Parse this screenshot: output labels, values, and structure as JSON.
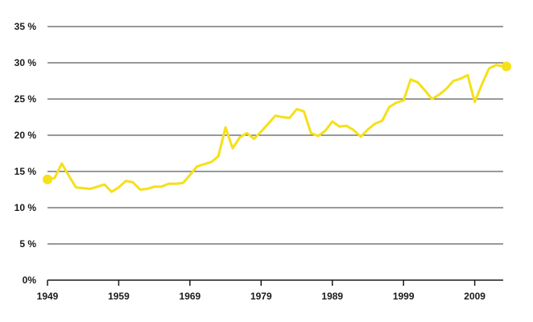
{
  "chart_data": {
    "type": "line",
    "title": "",
    "xlabel": "",
    "ylabel": "",
    "xlim": [
      1949,
      2013
    ],
    "ylim": [
      0,
      35
    ],
    "grid": true,
    "legend": "none",
    "x_ticks": [
      1949,
      1959,
      1969,
      1979,
      1989,
      1999,
      2009
    ],
    "x_tick_labels": [
      "1949",
      "1959",
      "1969",
      "1979",
      "1989",
      "1999",
      "2009"
    ],
    "y_ticks": [
      0,
      5,
      10,
      15,
      20,
      25,
      30,
      35
    ],
    "y_tick_labels": [
      "0%",
      "5 %",
      "10 %",
      "15 %",
      "20 %",
      "25 %",
      "30 %",
      "35 %"
    ],
    "colors": {
      "line": "#f5e01a",
      "grid": "#333333",
      "axis": "#1a1a1a"
    },
    "series": [
      {
        "x": [
          1949,
          1950,
          1951,
          1952,
          1953,
          1954,
          1955,
          1956,
          1957,
          1958,
          1959,
          1960,
          1961,
          1962,
          1963,
          1964,
          1965,
          1966,
          1967,
          1968,
          1969,
          1970,
          1971,
          1972,
          1973,
          1974,
          1975,
          1976,
          1977,
          1978,
          1979,
          1980,
          1981,
          1982,
          1983,
          1984,
          1985,
          1986,
          1987,
          1988,
          1989,
          1990,
          1991,
          1992,
          1993,
          1994,
          1995,
          1996,
          1997,
          1998,
          1999,
          2000,
          2001,
          2002,
          2003,
          2004,
          2005,
          2006,
          2007,
          2008,
          2009,
          2010,
          2011,
          2012,
          2013
        ],
        "values": [
          13.9,
          14.1,
          16.1,
          14.4,
          12.8,
          12.7,
          12.6,
          12.9,
          13.2,
          12.2,
          12.8,
          13.7,
          13.5,
          12.5,
          12.6,
          12.9,
          12.9,
          13.3,
          13.3,
          13.4,
          14.5,
          15.7,
          16.0,
          16.3,
          17.1,
          21.1,
          18.2,
          19.7,
          20.3,
          19.5,
          20.5,
          21.6,
          22.7,
          22.5,
          22.4,
          23.6,
          23.3,
          20.3,
          19.9,
          20.6,
          21.9,
          21.2,
          21.3,
          20.7,
          19.8,
          20.8,
          21.6,
          22.0,
          23.9,
          24.5,
          24.8,
          27.7,
          27.3,
          26.2,
          25.0,
          25.6,
          26.4,
          27.5,
          27.8,
          28.3,
          24.6,
          27.0,
          29.2,
          29.7,
          29.5
        ]
      }
    ]
  }
}
